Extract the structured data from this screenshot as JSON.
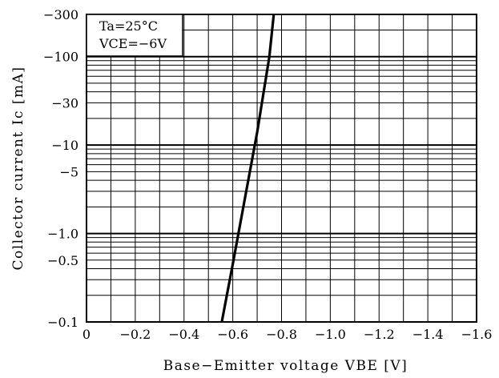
{
  "chart_data": {
    "type": "line",
    "title": "",
    "xlabel": "Base−Emitter voltage VBE [V]",
    "ylabel": "Collector current Ic [mA]",
    "x_scale": "linear",
    "y_scale": "log",
    "xlim": [
      0,
      -1.6
    ],
    "ylim": [
      -0.1,
      -300
    ],
    "x_tick_labels": [
      "0",
      "−0.2",
      "−0.4",
      "−0.6",
      "−0.8",
      "−1.0",
      "−1.2",
      "−1.4",
      "−1.6"
    ],
    "x_tick_values": [
      0,
      -0.2,
      -0.4,
      -0.6,
      -0.8,
      -1.0,
      -1.2,
      -1.4,
      -1.6
    ],
    "y_tick_labels": [
      "−0.1",
      "−0.5",
      "−1.0",
      "−5",
      "−10",
      "−30",
      "−100",
      "−300"
    ],
    "y_tick_values": [
      -0.1,
      -0.5,
      -1.0,
      -5,
      -10,
      -30,
      -100,
      -300
    ],
    "grid": true,
    "annotations": [
      "Ta=25°C",
      "VCE=−6V"
    ],
    "series": [
      {
        "x": [
          -0.555,
          -0.6,
          -0.65,
          -0.7,
          -0.75,
          -0.768
        ],
        "y": [
          -0.1,
          -0.45,
          -2.5,
          -14,
          -100,
          -300
        ]
      }
    ]
  }
}
